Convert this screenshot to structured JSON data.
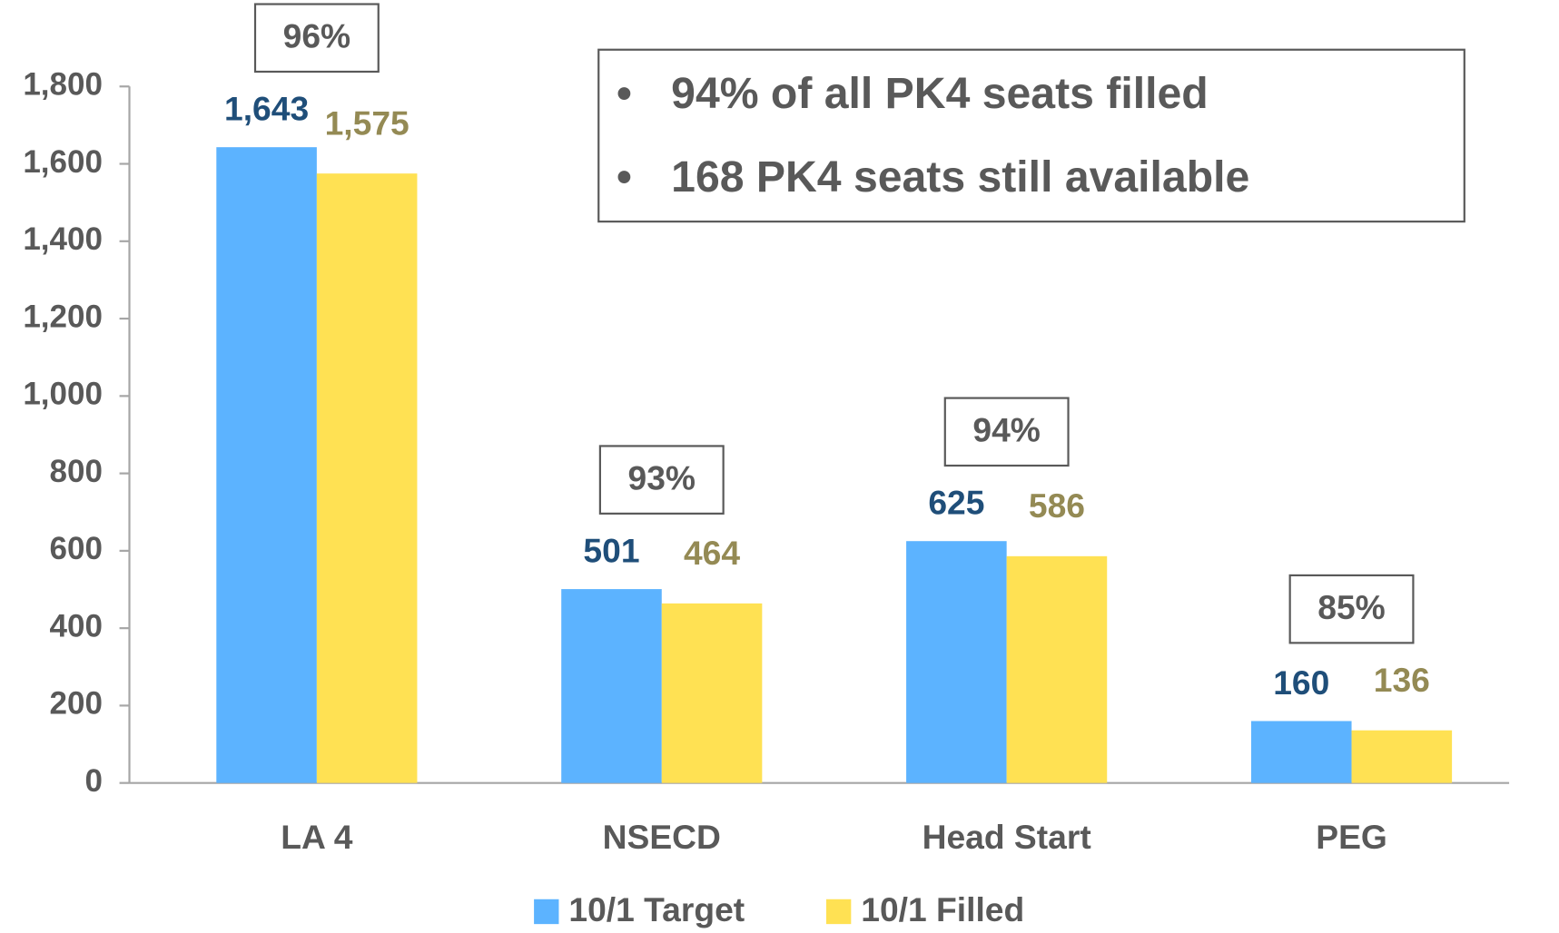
{
  "chart_data": {
    "type": "bar",
    "categories": [
      "LA 4",
      "NSECD",
      "Head Start",
      "PEG"
    ],
    "series": [
      {
        "name": "10/1 Target",
        "color": "#5cb3ff",
        "label_color": "#1f4e79",
        "values": [
          1643,
          501,
          625,
          160
        ],
        "value_labels": [
          "1,643",
          "501",
          "625",
          "160"
        ]
      },
      {
        "name": "10/1 Filled",
        "color": "#ffe153",
        "label_color": "#948a54",
        "values": [
          1575,
          464,
          586,
          136
        ],
        "value_labels": [
          "1,575",
          "464",
          "586",
          "136"
        ]
      }
    ],
    "group_labels": [
      "96%",
      "93%",
      "94%",
      "85%"
    ],
    "notes": [
      "94% of all PK4 seats filled",
      "168 PK4 seats still available"
    ],
    "ylim": [
      0,
      1800
    ],
    "yticks": [
      0,
      200,
      400,
      600,
      800,
      {
        "value": 1000,
        "label": "1,000"
      },
      {
        "value": 1200,
        "label": "1,200"
      },
      {
        "value": 1400,
        "label": "1,400"
      },
      {
        "value": 1600,
        "label": "1,600"
      },
      {
        "value": 1800,
        "label": "1,800"
      }
    ],
    "legend": "bottom"
  }
}
